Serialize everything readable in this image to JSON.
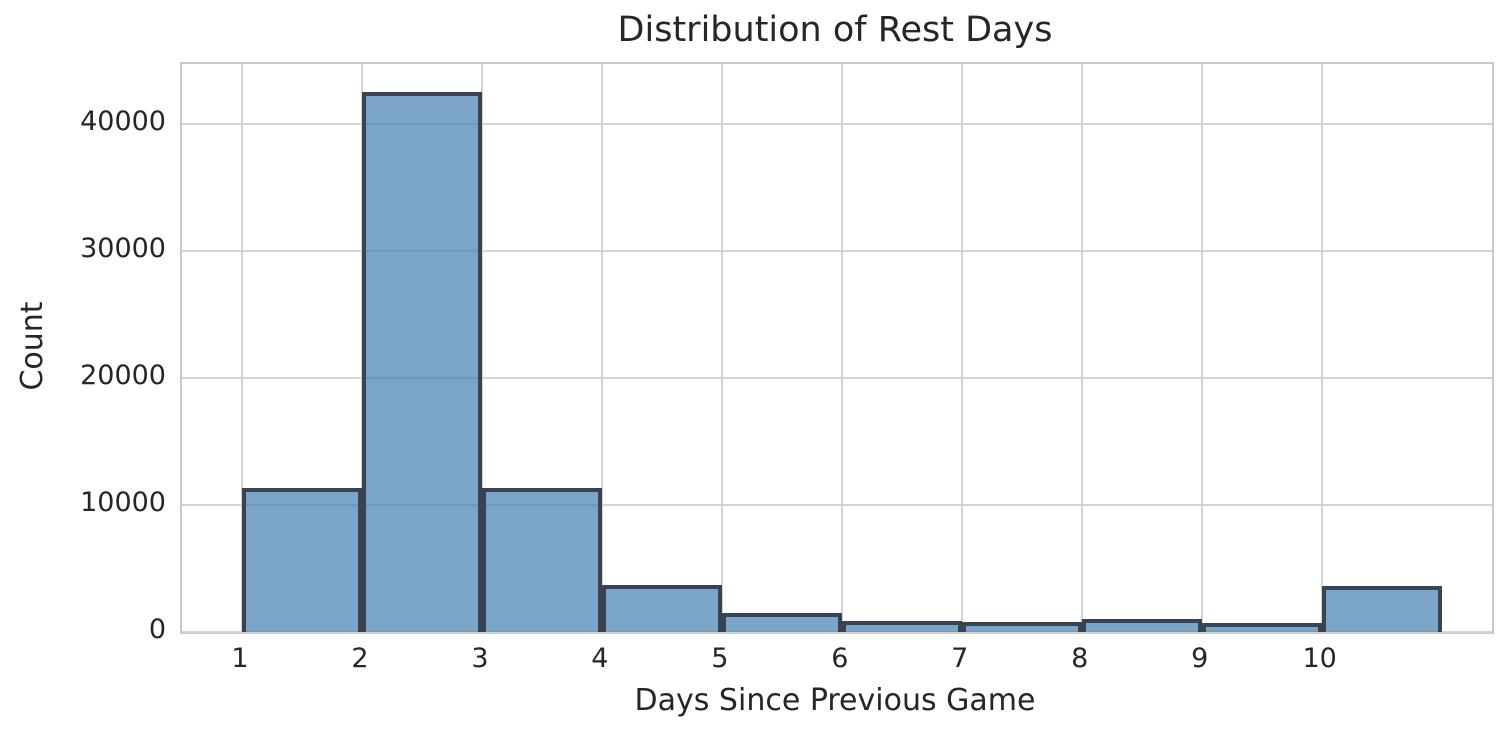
{
  "chart_data": {
    "type": "bar",
    "subtype": "histogram",
    "title": "Distribution of Rest Days",
    "xlabel": "Days Since Previous Game",
    "ylabel": "Count",
    "bin_edges": [
      1,
      2,
      3,
      4,
      5,
      6,
      7,
      8,
      9,
      10,
      11
    ],
    "counts": [
      11300,
      42500,
      11350,
      3700,
      1500,
      900,
      800,
      1050,
      700,
      3650
    ],
    "x_ticks": [
      1,
      2,
      3,
      4,
      5,
      6,
      7,
      8,
      9,
      10
    ],
    "y_ticks": [
      0,
      10000,
      20000,
      30000,
      40000
    ],
    "xlim": [
      0.5,
      11.42
    ],
    "ylim": [
      0,
      44700
    ],
    "grid": true,
    "legend": "none",
    "colors": {
      "bar_fill": "rgba(70, 130, 180, 0.72)",
      "bar_fill_flat": "#7aa6cb",
      "bar_edge": "#3a434f",
      "grid_color": "#d4d4d4",
      "spine_color": "#cacaca",
      "text_color": "#262626",
      "background": "#ffffff"
    }
  }
}
